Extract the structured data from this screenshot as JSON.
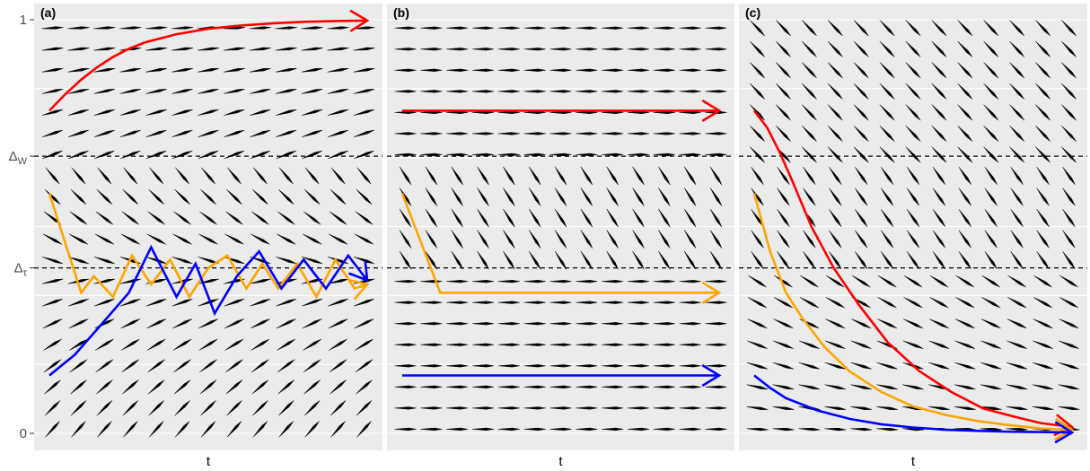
{
  "y_ticks": [
    {
      "key": "one",
      "label": "1",
      "value": 1
    },
    {
      "key": "dw",
      "label": "Δ",
      "sub": "W",
      "value": 0.67
    },
    {
      "key": "dt",
      "label": "Δ",
      "sub": "τ",
      "value": 0.4
    },
    {
      "key": "zero",
      "label": "0",
      "value": 0
    }
  ],
  "colors": {
    "red": "#ff0000",
    "orange": "#ffa500",
    "blue": "#0000ff",
    "panel_bg": "#ebebeb",
    "field_arrows": "#000000"
  },
  "chart_data": [
    {
      "panel": "(a)",
      "type": "line",
      "xlabel": "t",
      "ylabel": "",
      "xlim": [
        0,
        1
      ],
      "ylim": [
        0,
        1
      ],
      "grid": true,
      "reference_lines": [
        {
          "label": "ΔW",
          "y": 0.67,
          "style": "dashed"
        },
        {
          "label": "Δτ",
          "y": 0.4,
          "style": "dashed"
        }
      ],
      "series": [
        {
          "color": "red",
          "x": [
            0,
            0.05,
            0.1,
            0.15,
            0.2,
            0.25,
            0.3,
            0.4,
            0.5,
            0.6,
            0.7,
            0.8,
            0.9,
            1.0
          ],
          "y": [
            0.78,
            0.82,
            0.855,
            0.885,
            0.91,
            0.93,
            0.945,
            0.965,
            0.978,
            0.986,
            0.991,
            0.995,
            0.997,
            0.998
          ]
        },
        {
          "color": "orange",
          "x": [
            0,
            0.1,
            0.14,
            0.2,
            0.26,
            0.32,
            0.38,
            0.44,
            0.5,
            0.56,
            0.62,
            0.67,
            0.72,
            0.78,
            0.84,
            0.9,
            0.96,
            1.0
          ],
          "y": [
            0.58,
            0.34,
            0.38,
            0.33,
            0.43,
            0.36,
            0.42,
            0.33,
            0.4,
            0.43,
            0.35,
            0.41,
            0.35,
            0.41,
            0.33,
            0.42,
            0.35,
            0.36
          ]
        },
        {
          "color": "blue",
          "x": [
            0,
            0.08,
            0.16,
            0.25,
            0.32,
            0.4,
            0.46,
            0.52,
            0.59,
            0.66,
            0.73,
            0.8,
            0.87,
            0.94,
            1.0
          ],
          "y": [
            0.14,
            0.19,
            0.26,
            0.34,
            0.45,
            0.33,
            0.41,
            0.29,
            0.38,
            0.44,
            0.35,
            0.42,
            0.35,
            0.43,
            0.37
          ]
        }
      ]
    },
    {
      "panel": "(b)",
      "type": "line",
      "xlabel": "t",
      "ylabel": "",
      "xlim": [
        0,
        1
      ],
      "ylim": [
        0,
        1
      ],
      "grid": true,
      "reference_lines": [
        {
          "label": "ΔW",
          "y": 0.67,
          "style": "dashed"
        },
        {
          "label": "Δτ",
          "y": 0.4,
          "style": "dashed"
        }
      ],
      "series": [
        {
          "color": "red",
          "x": [
            0,
            1.0
          ],
          "y": [
            0.78,
            0.78
          ]
        },
        {
          "color": "orange",
          "x": [
            0,
            0.12,
            1.0
          ],
          "y": [
            0.58,
            0.34,
            0.34
          ]
        },
        {
          "color": "blue",
          "x": [
            0,
            1.0
          ],
          "y": [
            0.14,
            0.14
          ]
        }
      ]
    },
    {
      "panel": "(c)",
      "type": "line",
      "xlabel": "t",
      "ylabel": "",
      "xlim": [
        0,
        1
      ],
      "ylim": [
        0,
        1
      ],
      "grid": true,
      "reference_lines": [
        {
          "label": "ΔW",
          "y": 0.67,
          "style": "dashed"
        },
        {
          "label": "Δτ",
          "y": 0.4,
          "style": "dashed"
        }
      ],
      "series": [
        {
          "color": "red",
          "x": [
            0,
            0.04,
            0.08,
            0.12,
            0.18,
            0.25,
            0.33,
            0.42,
            0.52,
            0.62,
            0.72,
            0.82,
            0.9,
            1.0
          ],
          "y": [
            0.78,
            0.74,
            0.68,
            0.61,
            0.5,
            0.4,
            0.31,
            0.22,
            0.15,
            0.1,
            0.06,
            0.04,
            0.025,
            0.015
          ]
        },
        {
          "color": "orange",
          "x": [
            0,
            0.05,
            0.1,
            0.15,
            0.22,
            0.3,
            0.4,
            0.5,
            0.6,
            0.7,
            0.8,
            0.9,
            1.0
          ],
          "y": [
            0.58,
            0.44,
            0.34,
            0.28,
            0.21,
            0.15,
            0.1,
            0.065,
            0.045,
            0.03,
            0.02,
            0.012,
            0.008
          ]
        },
        {
          "color": "blue",
          "x": [
            0,
            0.05,
            0.1,
            0.2,
            0.3,
            0.4,
            0.5,
            0.6,
            0.7,
            0.8,
            0.9,
            1.0
          ],
          "y": [
            0.14,
            0.11,
            0.085,
            0.055,
            0.035,
            0.022,
            0.014,
            0.009,
            0.006,
            0.004,
            0.003,
            0.002
          ]
        }
      ]
    }
  ]
}
